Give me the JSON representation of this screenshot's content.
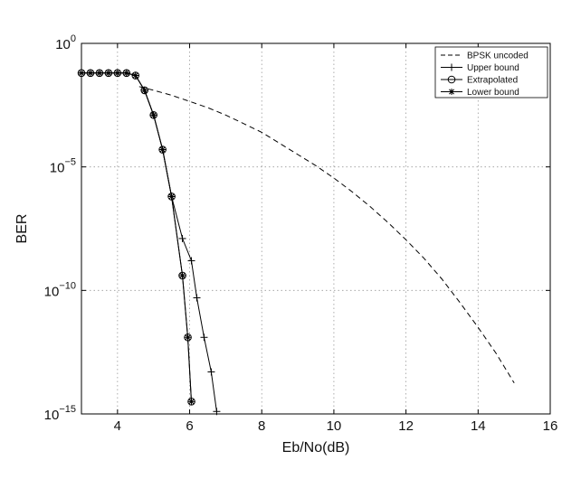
{
  "chart_data": {
    "type": "line",
    "xlabel": "Eb/No(dB)",
    "ylabel": "BER",
    "xlim": [
      3,
      16
    ],
    "ylim_exponent": [
      -15,
      0
    ],
    "yscale": "log",
    "grid": true,
    "legend_position": "top-right",
    "x_ticks": [
      4,
      6,
      8,
      10,
      12,
      14,
      16
    ],
    "y_ticks": [
      {
        "base": "10",
        "exp": "0",
        "value": 0
      },
      {
        "base": "10",
        "exp": "−5",
        "value": -5
      },
      {
        "base": "10",
        "exp": "−10",
        "value": -10
      },
      {
        "base": "10",
        "exp": "−15",
        "value": -15
      }
    ],
    "series": [
      {
        "name": "BPSK uncoded",
        "style": "dashed",
        "marker": "none",
        "x": [
          4.6,
          5,
          5.5,
          6,
          6.5,
          7,
          7.5,
          8,
          8.5,
          9,
          9.5,
          10,
          10.5,
          11,
          11.5,
          12,
          12.5,
          13,
          13.5,
          14,
          14.5,
          15
        ],
        "log10_y": [
          -1.75,
          -1.9,
          -2.1,
          -2.35,
          -2.6,
          -2.9,
          -3.25,
          -3.6,
          -4.05,
          -4.5,
          -4.95,
          -5.45,
          -6.0,
          -6.6,
          -7.25,
          -7.95,
          -8.7,
          -9.55,
          -10.5,
          -11.5,
          -12.55,
          -13.75
        ]
      },
      {
        "name": "Upper bound",
        "style": "solid",
        "marker": "plus",
        "x": [
          3,
          3.25,
          3.5,
          3.75,
          4,
          4.25,
          4.5,
          4.75,
          5,
          5.25,
          5.5,
          5.8,
          6.05,
          6.2,
          6.4,
          6.6,
          6.75
        ],
        "log10_y": [
          -1.2,
          -1.2,
          -1.2,
          -1.2,
          -1.2,
          -1.2,
          -1.3,
          -1.9,
          -2.9,
          -4.3,
          -6.2,
          -7.9,
          -8.8,
          -10.3,
          -11.9,
          -13.3,
          -14.9
        ]
      },
      {
        "name": "Extrapolated",
        "style": "solid",
        "marker": "circle",
        "x": [
          3,
          3.25,
          3.5,
          3.75,
          4,
          4.25,
          4.5,
          4.75,
          5,
          5.25,
          5.5,
          5.8,
          5.95,
          6.05
        ],
        "log10_y": [
          -1.2,
          -1.2,
          -1.2,
          -1.2,
          -1.2,
          -1.2,
          -1.3,
          -1.9,
          -2.9,
          -4.3,
          -6.2,
          -9.4,
          -11.9,
          -14.5
        ]
      },
      {
        "name": "Lower bound",
        "style": "solid",
        "marker": "star",
        "x": [
          3,
          3.25,
          3.5,
          3.75,
          4,
          4.25,
          4.5,
          4.75,
          5,
          5.25,
          5.5,
          5.8,
          5.95,
          6.05
        ],
        "log10_y": [
          -1.2,
          -1.2,
          -1.2,
          -1.2,
          -1.2,
          -1.2,
          -1.3,
          -1.9,
          -2.9,
          -4.3,
          -6.2,
          -9.4,
          -11.9,
          -14.5
        ]
      }
    ]
  }
}
